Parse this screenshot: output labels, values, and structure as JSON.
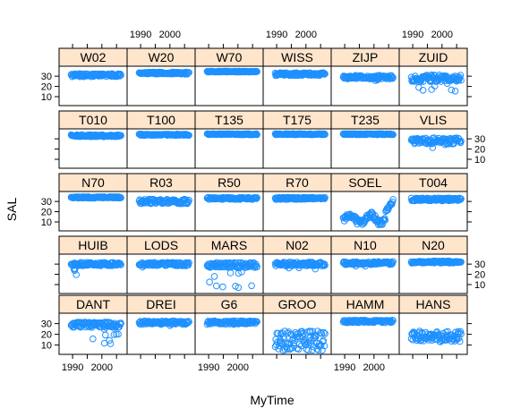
{
  "chart_data": {
    "type": "scatter",
    "layout": "lattice-5x6",
    "xlabel": "MyTime",
    "ylabel": "SAL",
    "xlim": [
      1986,
      2008
    ],
    "ylim": [
      3,
      38
    ],
    "x_ticks": [
      1990,
      2000
    ],
    "y_ticks": [
      10,
      20,
      30
    ],
    "colors": {
      "points": "#1e90ff",
      "strip": "#ffe5cc",
      "frame": "#000000"
    },
    "panels": [
      {
        "name": "DANT",
        "row": 1,
        "col": 1,
        "level": 29,
        "spread": 2.5,
        "outliers": 10,
        "low": 8
      },
      {
        "name": "DREI",
        "row": 1,
        "col": 2,
        "level": 31,
        "spread": 1.6,
        "outliers": 2,
        "low": 28
      },
      {
        "name": "G6",
        "row": 1,
        "col": 3,
        "level": 31,
        "spread": 1.6,
        "outliers": 2,
        "low": 28
      },
      {
        "name": "GROO",
        "row": 1,
        "col": 4,
        "level": 14,
        "spread": 9,
        "outliers": 0,
        "low": 4
      },
      {
        "name": "HAMM",
        "row": 1,
        "col": 5,
        "level": 32,
        "spread": 1.2,
        "outliers": 0,
        "low": 30
      },
      {
        "name": "HANS",
        "row": 1,
        "col": 6,
        "level": 18,
        "spread": 5,
        "outliers": 0,
        "low": 8
      },
      {
        "name": "HUIB",
        "row": 2,
        "col": 1,
        "level": 30,
        "spread": 1.6,
        "outliers": 6,
        "low": 18
      },
      {
        "name": "LODS",
        "row": 2,
        "col": 2,
        "level": 30,
        "spread": 1.6,
        "outliers": 2,
        "low": 27
      },
      {
        "name": "MARS",
        "row": 2,
        "col": 3,
        "level": 29,
        "spread": 2.5,
        "outliers": 12,
        "low": 6
      },
      {
        "name": "N02",
        "row": 2,
        "col": 4,
        "level": 30,
        "spread": 2,
        "outliers": 3,
        "low": 24
      },
      {
        "name": "N10",
        "row": 2,
        "col": 5,
        "level": 31,
        "spread": 1.5,
        "outliers": 2,
        "low": 27
      },
      {
        "name": "N20",
        "row": 2,
        "col": 6,
        "level": 32,
        "spread": 1.1,
        "outliers": 1,
        "low": 29
      },
      {
        "name": "N70",
        "row": 3,
        "col": 1,
        "level": 34,
        "spread": 0.7,
        "outliers": 0,
        "low": 33
      },
      {
        "name": "R03",
        "row": 3,
        "col": 2,
        "level": 30,
        "spread": 2.2,
        "outliers": 0,
        "low": 26
      },
      {
        "name": "R50",
        "row": 3,
        "col": 3,
        "level": 33,
        "spread": 1,
        "outliers": 0,
        "low": 31
      },
      {
        "name": "R70",
        "row": 3,
        "col": 4,
        "level": 33,
        "spread": 1,
        "outliers": 0,
        "low": 31
      },
      {
        "name": "SOEL",
        "row": 3,
        "col": 5,
        "level": 14,
        "spread": 3,
        "outliers": 0,
        "low": 9
      },
      {
        "name": "T004",
        "row": 3,
        "col": 6,
        "level": 32,
        "spread": 1.4,
        "outliers": 0,
        "low": 29
      },
      {
        "name": "T010",
        "row": 4,
        "col": 1,
        "level": 33,
        "spread": 1,
        "outliers": 0,
        "low": 31
      },
      {
        "name": "T100",
        "row": 4,
        "col": 2,
        "level": 34,
        "spread": 0.6,
        "outliers": 0,
        "low": 33
      },
      {
        "name": "T135",
        "row": 4,
        "col": 3,
        "level": 34.5,
        "spread": 0.5,
        "outliers": 0,
        "low": 33.5
      },
      {
        "name": "T175",
        "row": 4,
        "col": 4,
        "level": 34.5,
        "spread": 0.5,
        "outliers": 0,
        "low": 33.5
      },
      {
        "name": "T235",
        "row": 4,
        "col": 5,
        "level": 34.5,
        "spread": 0.5,
        "outliers": 0,
        "low": 33.5
      },
      {
        "name": "VLIS",
        "row": 4,
        "col": 6,
        "level": 28,
        "spread": 3,
        "outliers": 3,
        "low": 20
      },
      {
        "name": "W02",
        "row": 5,
        "col": 1,
        "level": 31,
        "spread": 1.5,
        "outliers": 0,
        "low": 28
      },
      {
        "name": "W20",
        "row": 5,
        "col": 2,
        "level": 33,
        "spread": 1,
        "outliers": 0,
        "low": 31
      },
      {
        "name": "W70",
        "row": 5,
        "col": 3,
        "level": 34.5,
        "spread": 0.4,
        "outliers": 0,
        "low": 34
      },
      {
        "name": "WISS",
        "row": 5,
        "col": 4,
        "level": 32,
        "spread": 1.4,
        "outliers": 0,
        "low": 29
      },
      {
        "name": "ZIJP",
        "row": 5,
        "col": 5,
        "level": 29,
        "spread": 1.8,
        "outliers": 2,
        "low": 22
      },
      {
        "name": "ZUID",
        "row": 5,
        "col": 6,
        "level": 28,
        "spread": 3.5,
        "outliers": 10,
        "low": 12
      }
    ]
  }
}
